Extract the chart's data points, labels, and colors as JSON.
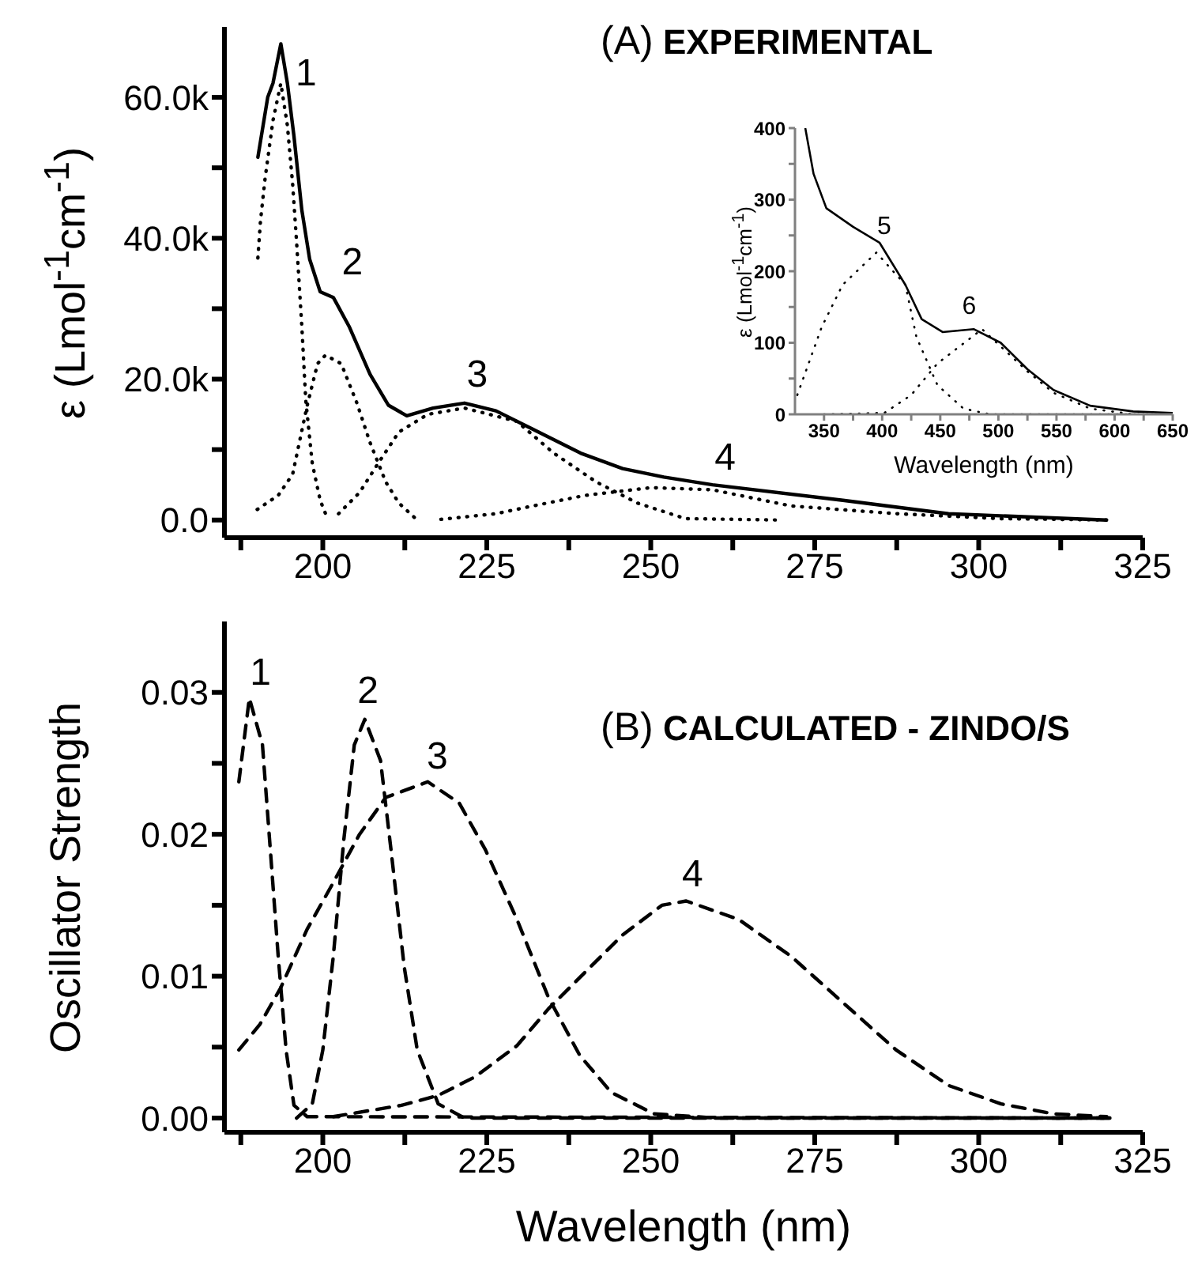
{
  "chart_data": [
    {
      "type": "line",
      "title": "(A) EXPERIMENTAL",
      "ylabel": "ε (Lmol$^{-1}$cm$^{-1}$)",
      "xlim": [
        185,
        325
      ],
      "ylim": [
        -2500,
        70000
      ],
      "xticks": [
        {
          "value": 187.5,
          "label": null
        },
        200,
        {
          "value": 212.5,
          "label": null
        },
        225,
        {
          "value": 237.5,
          "label": null
        },
        250,
        {
          "value": 262.5,
          "label": null
        },
        275,
        {
          "value": 287.5,
          "label": null
        },
        300,
        {
          "value": 312.5,
          "label": null
        },
        325
      ],
      "yticks": [
        {
          "value": 0,
          "label": "0.0"
        },
        {
          "value": 10000,
          "label": null
        },
        {
          "value": 20000,
          "label": "20.0k"
        },
        {
          "value": 30000,
          "label": null
        },
        {
          "value": 40000,
          "label": "40.0k"
        },
        {
          "value": 50000,
          "label": null
        },
        {
          "value": 60000,
          "label": "60.0k"
        }
      ],
      "series": [
        {
          "color": "#000000",
          "line_style": "solid",
          "x": [
            190.1,
            191.6,
            192.4,
            193.6,
            194.6,
            195.6,
            196.8,
            198,
            199.6,
            201.6,
            204,
            207.2,
            210,
            212.8,
            216.8,
            221.6,
            226.4,
            232,
            239.3,
            245.7,
            252,
            259.4,
            279.3,
            295.4,
            319.5
          ],
          "values": [
            51500,
            60000,
            62000,
            67600,
            62000,
            54500,
            44000,
            37000,
            32400,
            31600,
            27500,
            20700,
            16300,
            14800,
            15900,
            16600,
            15500,
            12900,
            9500,
            7300,
            6100,
            5000,
            2800,
            900,
            0
          ]
        },
        {
          "color": "#000000",
          "line_style": "dotted",
          "x": [
            190.1,
            190.5,
            191.2,
            192.4,
            193.6,
            194.6,
            195.4,
            196,
            196.8,
            197.4,
            198.4,
            199.6,
            200.8
          ],
          "values": [
            37200,
            42500,
            48500,
            56700,
            62000,
            56000,
            47700,
            39500,
            27500,
            17000,
            8000,
            2800,
            0
          ]
        },
        {
          "color": "#000000",
          "line_style": "dotted",
          "x": [
            190,
            193.2,
            195.4,
            197.6,
            199.2,
            200.4,
            202.8,
            205.2,
            207.2,
            209.6,
            211.6,
            214.4
          ],
          "values": [
            1500,
            3500,
            6500,
            16200,
            22200,
            23400,
            22200,
            16600,
            11000,
            5400,
            2400,
            0
          ]
        },
        {
          "color": "#000000",
          "line_style": "dotted",
          "x": [
            202.4,
            205.6,
            208.4,
            211.6,
            216,
            221.6,
            229.6,
            235.2,
            241.7,
            248,
            255.3,
            270
          ],
          "values": [
            900,
            3900,
            8000,
            12500,
            15000,
            15900,
            14000,
            9500,
            5400,
            2400,
            200,
            0
          ]
        },
        {
          "color": "#000000",
          "line_style": "dotted",
          "x": [
            218,
            226.4,
            232,
            240,
            250,
            259.4,
            271.4,
            287.5,
            303.4,
            320
          ],
          "values": [
            100,
            900,
            2000,
            3500,
            4600,
            4300,
            2000,
            900,
            200,
            0
          ]
        }
      ],
      "annotations": [
        {
          "text": "1",
          "x": 193.6,
          "y": 62000
        },
        {
          "text": "2",
          "x": 201.6,
          "y": 31600
        },
        {
          "text": "3",
          "x": 221.6,
          "y": 16600
        },
        {
          "text": "4",
          "x": 250,
          "y": 4600
        }
      ]
    },
    {
      "type": "line",
      "xlabel": "Wavelength (nm)",
      "ylabel": "ε (Lmol$^{-1}$cm$^{-1}$)",
      "xlim": [
        325,
        650
      ],
      "ylim": [
        0,
        400
      ],
      "xticks": [
        350,
        {
          "value": 375,
          "label": null
        },
        400,
        {
          "value": 425,
          "label": null
        },
        450,
        {
          "value": 475,
          "label": null
        },
        500,
        {
          "value": 525,
          "label": null
        },
        550,
        {
          "value": 575,
          "label": null
        },
        600,
        {
          "value": 625,
          "label": null
        },
        650
      ],
      "yticks": [
        0,
        {
          "value": 50,
          "label": null
        },
        100,
        {
          "value": 150,
          "label": null
        },
        200,
        {
          "value": 250,
          "label": null
        },
        300,
        {
          "value": 350,
          "label": null
        },
        400
      ],
      "series": [
        {
          "color": "#000000",
          "line_style": "solid",
          "x": [
            334,
            341,
            352,
            375,
            397.7,
            420,
            434,
            452,
            479,
            502,
            525,
            547.5,
            579,
            616,
            650
          ],
          "values": [
            399,
            336,
            288,
            262,
            240,
            181,
            133,
            115,
            119,
            100,
            63,
            34,
            12,
            4,
            2
          ]
        },
        {
          "color": "#000000",
          "line_style": "dotted",
          "x": [
            327,
            348,
            366,
            395,
            420,
            429.5,
            447.5,
            470,
            493,
            650
          ],
          "values": [
            27,
            122,
            181,
            226,
            181,
            108,
            41,
            8,
            0,
            0
          ]
        },
        {
          "color": "#000000",
          "line_style": "dotted",
          "x": [
            350,
            402,
            425,
            447.5,
            486,
            525,
            547.5,
            579,
            616,
            650
          ],
          "values": [
            0,
            2,
            27,
            71,
            119,
            60,
            30,
            8,
            0,
            0
          ]
        }
      ],
      "annotations": [
        {
          "text": "5",
          "x": 397.7,
          "y": 240
        },
        {
          "text": "6",
          "x": 479,
          "y": 119
        }
      ]
    },
    {
      "type": "line",
      "title": "(B) CALCULATED - ZINDO/S",
      "xlabel": "Wavelength (nm)",
      "ylabel": "Oscillator Strength",
      "xlim": [
        185,
        325
      ],
      "ylim": [
        -0.001,
        0.035
      ],
      "xticks": [
        {
          "value": 187.5,
          "label": null
        },
        200,
        {
          "value": 212.5,
          "label": null
        },
        225,
        {
          "value": 237.5,
          "label": null
        },
        250,
        {
          "value": 262.5,
          "label": null
        },
        275,
        {
          "value": 287.5,
          "label": null
        },
        300,
        {
          "value": 312.5,
          "label": null
        },
        325
      ],
      "yticks": [
        {
          "value": 0,
          "label": "0.00"
        },
        {
          "value": 0.005,
          "label": null
        },
        {
          "value": 0.01,
          "label": "0.01"
        },
        {
          "value": 0.015,
          "label": null
        },
        {
          "value": 0.02,
          "label": "0.02"
        },
        {
          "value": 0.025,
          "label": null
        },
        {
          "value": 0.03,
          "label": "0.03"
        }
      ],
      "series": [
        {
          "color": "#000000",
          "line_style": "dashed",
          "x": [
            187.2,
            188.8,
            190.8,
            192,
            193.2,
            194.4,
            195.6,
            197.6,
            320
          ],
          "values": [
            0.0237,
            0.0296,
            0.0263,
            0.0189,
            0.0114,
            0.0048,
            0.0009,
            0.0001,
            0
          ]
        },
        {
          "color": "#000000",
          "line_style": "dashed",
          "x": [
            196,
            198.4,
            200,
            201.6,
            203.2,
            204.8,
            206.4,
            208.8,
            210.4,
            212.4,
            214.4,
            217.6,
            221.6,
            320
          ],
          "values": [
            0,
            0.001,
            0.0048,
            0.0114,
            0.0196,
            0.0263,
            0.0281,
            0.0252,
            0.0189,
            0.0107,
            0.0048,
            0.001,
            0,
            0
          ]
        },
        {
          "color": "#000000",
          "line_style": "dashed",
          "x": [
            187.2,
            190.4,
            193.6,
            197.6,
            201.6,
            205.6,
            209.6,
            216,
            220.8,
            224.8,
            229.6,
            234.4,
            239.2,
            244,
            250.5,
            260,
            320
          ],
          "values": [
            0.0048,
            0.0066,
            0.0092,
            0.0133,
            0.0166,
            0.02,
            0.0226,
            0.0237,
            0.0222,
            0.0189,
            0.014,
            0.0085,
            0.0044,
            0.0018,
            0.0003,
            0,
            0
          ]
        },
        {
          "color": "#000000",
          "line_style": "dashed",
          "x": [
            201.6,
            212,
            217.6,
            223.2,
            229.6,
            234.4,
            240.9,
            245.7,
            251.7,
            255.4,
            263.4,
            271.4,
            279.4,
            287.4,
            295.4,
            303.4,
            311.4,
            319.5
          ],
          "values": [
            0.0001,
            0.0009,
            0.0016,
            0.0029,
            0.0051,
            0.0077,
            0.0107,
            0.0129,
            0.015,
            0.0153,
            0.014,
            0.0114,
            0.0081,
            0.0048,
            0.0023,
            0.001,
            0.0003,
            0.0001
          ]
        }
      ],
      "annotations": [
        {
          "text": "1",
          "x": 188.8,
          "y": 0.0296
        },
        {
          "text": "2",
          "x": 206.4,
          "y": 0.0281
        },
        {
          "text": "3",
          "x": 216,
          "y": 0.0237
        },
        {
          "text": "4",
          "x": 255.4,
          "y": 0.0153
        }
      ]
    }
  ]
}
